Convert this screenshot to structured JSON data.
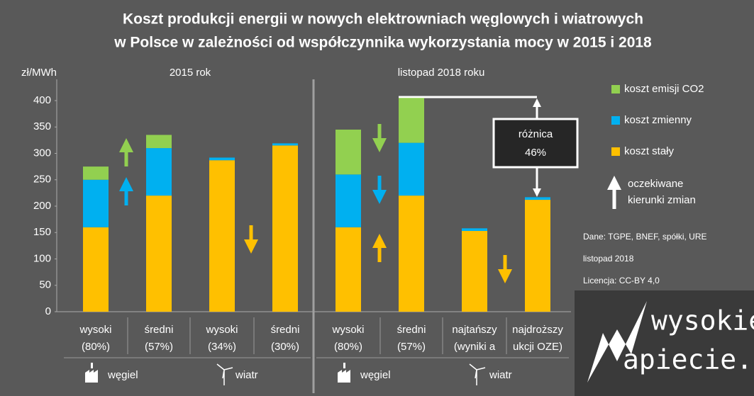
{
  "chart_data": {
    "type": "stacked_bar",
    "title": [
      "Koszt produkcji energii w nowych elektrowniach węglowych i wiatrowych",
      "w Polsce w zależności od współczynnika wykorzystania mocy w 2015 i 2018"
    ],
    "ylabel": "zł/MWh",
    "categories": [
      [
        "wysoki",
        "(80%)"
      ],
      [
        "średni",
        "(57%)"
      ],
      [
        "wysoki",
        "(34%)"
      ],
      [
        "średni",
        "(30%)"
      ],
      [
        "wysoki",
        "(80%)"
      ],
      [
        "średni",
        "(57%)"
      ],
      [
        "najtańszy",
        "(wyniki a"
      ],
      [
        "najdroższy",
        "ukcji OZE)"
      ]
    ],
    "groups": [
      {
        "label": "2015 rok"
      },
      {
        "label": "listopad 2018 roku"
      }
    ],
    "subgroups": [
      "węgiel",
      "wiatr",
      "węgiel",
      "wiatr"
    ],
    "series": [
      {
        "name": "koszt stały",
        "color": "#ffc000",
        "values": [
          160,
          220,
          287,
          315,
          160,
          220,
          153,
          212
        ]
      },
      {
        "name": "koszt zmienny",
        "color": "#00b0f0",
        "values": [
          90,
          90,
          5,
          4,
          100,
          100,
          5,
          5
        ]
      },
      {
        "name": "koszt emisji CO2",
        "color": "#92d050",
        "values": [
          25,
          25,
          0,
          0,
          85,
          85,
          0,
          0
        ]
      }
    ],
    "ylim": [
      0,
      430
    ],
    "yticks": [
      0,
      50,
      100,
      150,
      200,
      250,
      300,
      350,
      400
    ],
    "grid": false,
    "annotation": [
      "różnica",
      "46%"
    ],
    "arrow_legend": [
      "oczekiwane",
      "kierunki zmian"
    ],
    "source": [
      "Dane: TGPE, BNEF, spółki, URE",
      "listopad 2018",
      "Licencja: CC-BY  4,0"
    ],
    "logo": [
      "wysokie",
      "apiecie.pl"
    ]
  }
}
